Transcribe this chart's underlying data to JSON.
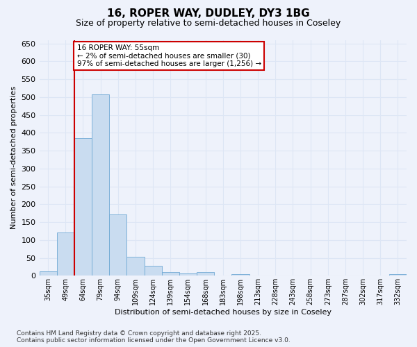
{
  "title_line1": "16, ROPER WAY, DUDLEY, DY3 1BG",
  "title_line2": "Size of property relative to semi-detached houses in Coseley",
  "xlabel": "Distribution of semi-detached houses by size in Coseley",
  "ylabel": "Number of semi-detached properties",
  "categories": [
    "35sqm",
    "49sqm",
    "64sqm",
    "79sqm",
    "94sqm",
    "109sqm",
    "124sqm",
    "139sqm",
    "154sqm",
    "168sqm",
    "183sqm",
    "198sqm",
    "213sqm",
    "228sqm",
    "243sqm",
    "258sqm",
    "273sqm",
    "287sqm",
    "302sqm",
    "317sqm",
    "332sqm"
  ],
  "values": [
    13,
    121,
    385,
    507,
    172,
    53,
    27,
    11,
    7,
    10,
    0,
    5,
    0,
    0,
    0,
    0,
    0,
    0,
    0,
    0,
    5
  ],
  "bar_color": "#c9dcf0",
  "bar_edge_color": "#6fa8d4",
  "vline_color": "#cc0000",
  "annotation_text": "16 ROPER WAY: 55sqm\n← 2% of semi-detached houses are smaller (30)\n97% of semi-detached houses are larger (1,256) →",
  "annotation_box_color": "white",
  "annotation_box_edge_color": "#cc0000",
  "ylim_max": 660,
  "yticks": [
    0,
    50,
    100,
    150,
    200,
    250,
    300,
    350,
    400,
    450,
    500,
    550,
    600,
    650
  ],
  "bg_color": "#eef2fb",
  "grid_color": "#dde6f5",
  "footer_text": "Contains HM Land Registry data © Crown copyright and database right 2025.\nContains public sector information licensed under the Open Government Licence v3.0."
}
